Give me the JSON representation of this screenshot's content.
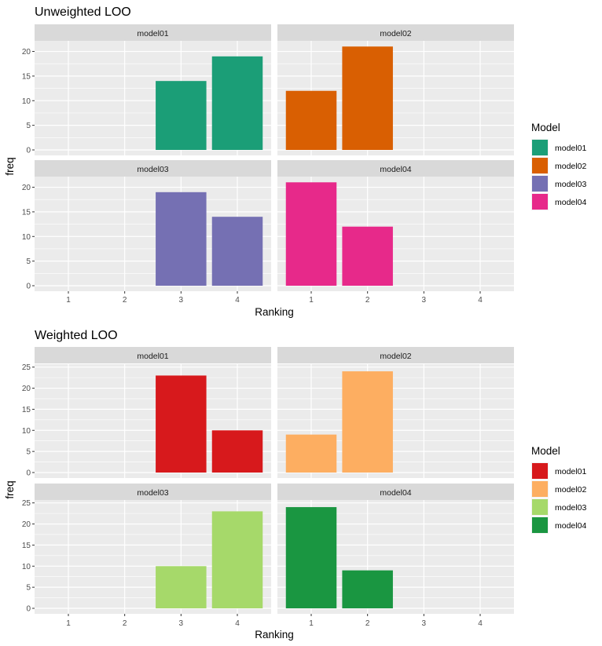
{
  "chart_data": [
    {
      "type": "bar",
      "title": "Unweighted LOO",
      "xlabel": "Ranking",
      "ylabel": "freq",
      "categories": [
        "1",
        "2",
        "3",
        "4"
      ],
      "ylim": [
        0,
        22
      ],
      "yticks": [
        0,
        5,
        10,
        15,
        20
      ],
      "legend_title": "Model",
      "grid": true,
      "legend_position": "right",
      "series": [
        {
          "name": "model01",
          "color": "#1B9E77",
          "values": [
            0,
            0,
            14,
            19
          ]
        },
        {
          "name": "model02",
          "color": "#D95F02",
          "values": [
            12,
            21,
            0,
            0
          ]
        },
        {
          "name": "model03",
          "color": "#7570B3",
          "values": [
            0,
            0,
            19,
            14
          ]
        },
        {
          "name": "model04",
          "color": "#E7298A",
          "values": [
            21,
            12,
            0,
            0
          ]
        }
      ]
    },
    {
      "type": "bar",
      "title": "Weighted LOO",
      "xlabel": "Ranking",
      "ylabel": "freq",
      "categories": [
        "1",
        "2",
        "3",
        "4"
      ],
      "ylim": [
        0,
        25.5
      ],
      "yticks": [
        0,
        5,
        10,
        15,
        20,
        25
      ],
      "legend_title": "Model",
      "grid": true,
      "legend_position": "right",
      "series": [
        {
          "name": "model01",
          "color": "#D7191C",
          "values": [
            0,
            0,
            23,
            10
          ]
        },
        {
          "name": "model02",
          "color": "#FDAE61",
          "values": [
            9,
            24,
            0,
            0
          ]
        },
        {
          "name": "model03",
          "color": "#A6D96A",
          "values": [
            0,
            0,
            10,
            23
          ]
        },
        {
          "name": "model04",
          "color": "#1A9641",
          "values": [
            24,
            9,
            0,
            0
          ]
        }
      ]
    }
  ]
}
